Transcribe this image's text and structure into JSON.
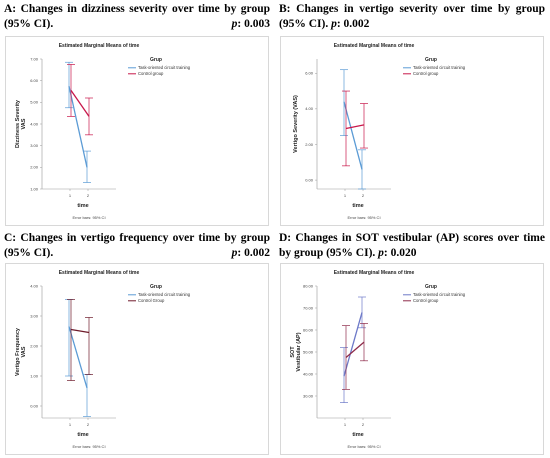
{
  "panels": [
    {
      "caption_main": "A: Changes in dizziness severity over time by group (95% CI).",
      "caption_p_label": "p",
      "caption_p_value": ": 0.003"
    },
    {
      "caption_main": "B: Changes in vertigo severity over time by group (95% CI).",
      "caption_p_label": "p",
      "caption_p_value": ": 0.002"
    },
    {
      "caption_main": "C: Changes in vertigo frequency over time by group (95% CI).",
      "caption_p_label": "p",
      "caption_p_value": ": 0.002"
    },
    {
      "caption_main": "D: Changes in SOT vestibular (AP) scores over time by group (95% CI).",
      "caption_p_label": "p",
      "caption_p_value": ": 0.020"
    }
  ],
  "chart_data": [
    {
      "type": "line",
      "title": "Estimated Marginal Means of time",
      "xlabel": "time",
      "ylabel": "Dizziness Severity\nVAS",
      "categories": [
        "1",
        "2"
      ],
      "ylim": [
        1.0,
        7.0
      ],
      "yticks": [
        "1.00",
        "2.00",
        "3.00",
        "4.00",
        "5.00",
        "6.00",
        "7.00"
      ],
      "legend_title": "Grup",
      "legend_position": "top-right",
      "footnote": "Error bars: 95% CI",
      "series": [
        {
          "name": "Task-oriented circuit training",
          "color": "#5b9bd5",
          "values": [
            5.75,
            2.0
          ],
          "ci_low": [
            4.75,
            1.3
          ],
          "ci_high": [
            6.85,
            2.75
          ]
        },
        {
          "name": "Control group",
          "color": "#c8174a",
          "values": [
            5.55,
            4.35
          ],
          "ci_low": [
            4.35,
            3.5
          ],
          "ci_high": [
            6.75,
            5.2
          ]
        }
      ]
    },
    {
      "type": "line",
      "title": "Estimated Marginal Means of time",
      "xlabel": "time",
      "ylabel": "Vertigo Severity (VAS)",
      "categories": [
        "1",
        "2"
      ],
      "ylim": [
        -0.5,
        6.8
      ],
      "yticks": [
        "0.00",
        "2.00",
        "4.00",
        "6.00"
      ],
      "legend_title": "Grup",
      "legend_position": "top-right",
      "footnote": "Error bars: 95% CI",
      "series": [
        {
          "name": "Task-oriented circuit training",
          "color": "#5b9bd5",
          "values": [
            4.4,
            0.6
          ],
          "ci_low": [
            2.5,
            -0.5
          ],
          "ci_high": [
            6.2,
            1.7
          ]
        },
        {
          "name": "Control group",
          "color": "#c8174a",
          "values": [
            2.9,
            3.1
          ],
          "ci_low": [
            0.8,
            1.8
          ],
          "ci_high": [
            5.0,
            4.3
          ]
        }
      ]
    },
    {
      "type": "line",
      "title": "Estimated Marginal Means of time",
      "xlabel": "time",
      "ylabel": "Vertigo Frequency\nVAS",
      "categories": [
        "1",
        "2"
      ],
      "ylim": [
        -0.4,
        4.0
      ],
      "yticks": [
        "0.00",
        "1.00",
        "2.00",
        "3.00",
        "4.00"
      ],
      "legend_title": "Grup",
      "legend_position": "top-right",
      "footnote": "Error bars: 95% CI",
      "series": [
        {
          "name": "Task-oriented circuit training",
          "color": "#5b9bd5",
          "values": [
            2.65,
            0.6
          ],
          "ci_low": [
            1.0,
            -0.35
          ],
          "ci_high": [
            3.55,
            1.05
          ]
        },
        {
          "name": "Control Group",
          "color": "#6e1a2a",
          "values": [
            2.55,
            2.45
          ],
          "ci_low": [
            0.85,
            1.05
          ],
          "ci_high": [
            3.55,
            2.95
          ]
        }
      ]
    },
    {
      "type": "line",
      "title": "Estimated Marginal Means of time",
      "xlabel": "time",
      "ylabel": "SOT\nVestibular (AP)",
      "categories": [
        "1",
        "2"
      ],
      "ylim": [
        20.0,
        80.0
      ],
      "yticks": [
        "30.00",
        "40.00",
        "50.00",
        "60.00",
        "70.00",
        "80.00"
      ],
      "legend_title": "Grup",
      "legend_position": "top-right",
      "footnote": "Error bars: 95% CI",
      "series": [
        {
          "name": "Task-oriented circuit training",
          "color": "#6d79c8",
          "values": [
            39.0,
            68.0
          ],
          "ci_low": [
            27.0,
            61.0
          ],
          "ci_high": [
            52.0,
            75.0
          ]
        },
        {
          "name": "Control group",
          "color": "#8e2b4a",
          "values": [
            47.5,
            54.5
          ],
          "ci_low": [
            33.0,
            46.0
          ],
          "ci_high": [
            62.0,
            63.0
          ]
        }
      ]
    }
  ]
}
